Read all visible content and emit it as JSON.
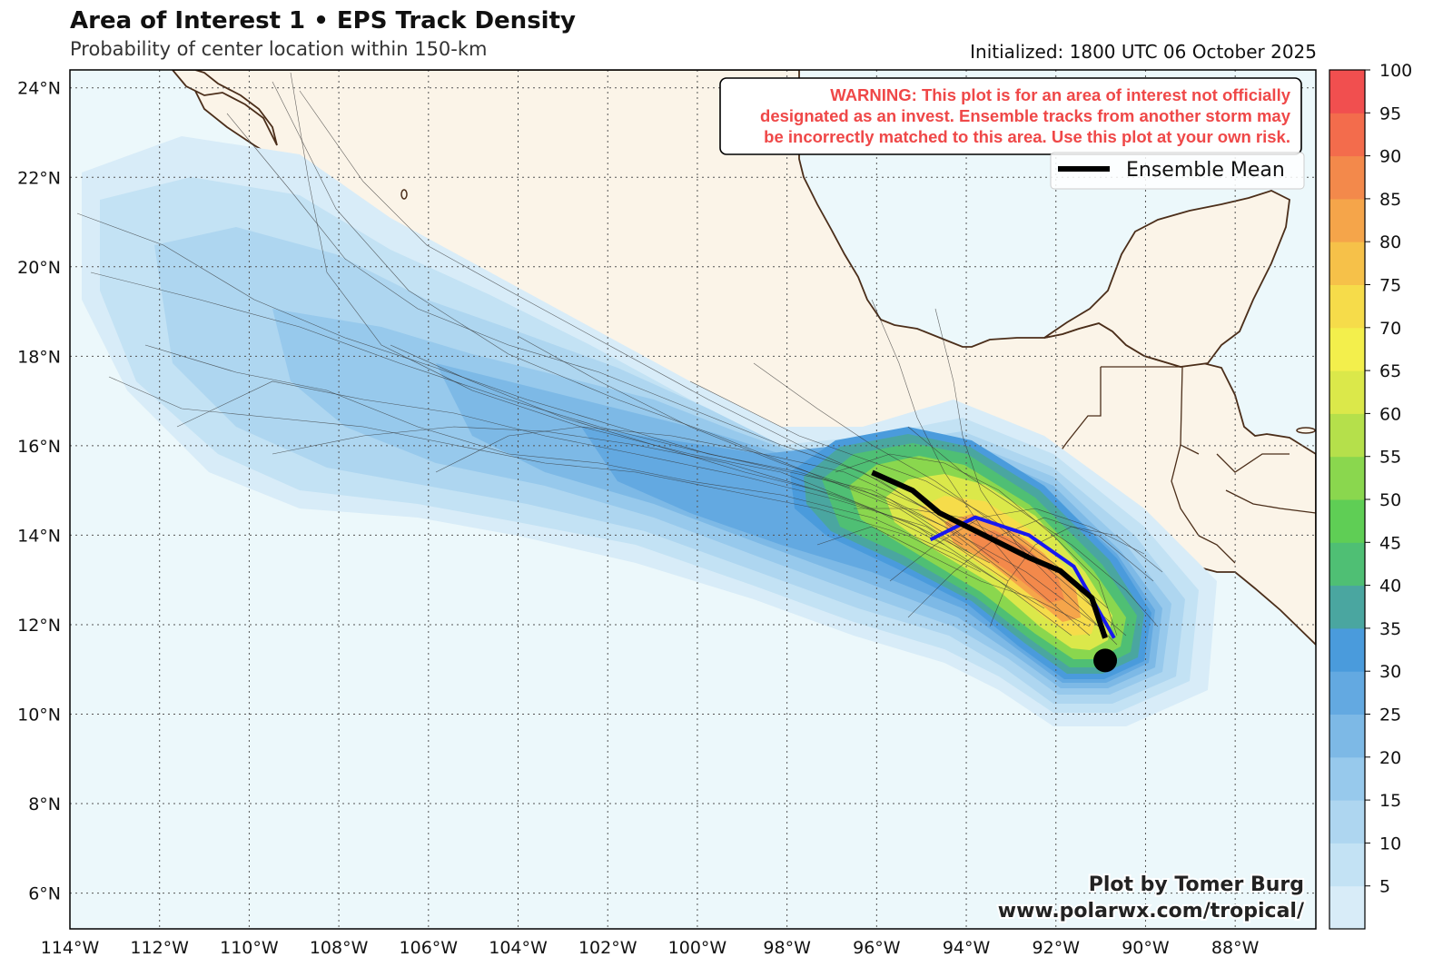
{
  "header": {
    "title": "Area of Interest 1 • EPS Track Density",
    "subtitle": "Probability of center location within 150-km",
    "initialized": "Initialized: 1800 UTC 06 October 2025"
  },
  "map": {
    "lat_labels": [
      "24°N",
      "22°N",
      "20°N",
      "18°N",
      "16°N",
      "14°N",
      "12°N",
      "10°N",
      "8°N",
      "6°N"
    ],
    "lon_labels": [
      "114°W",
      "112°W",
      "110°W",
      "108°W",
      "106°W",
      "104°W",
      "102°W",
      "100°W",
      "98°W",
      "96°W",
      "94°W",
      "92°W",
      "90°W",
      "88°W"
    ],
    "lat_values": [
      24,
      22,
      20,
      18,
      16,
      14,
      12,
      10,
      8,
      6
    ],
    "lon_values": [
      -114,
      -112,
      -110,
      -108,
      -106,
      -104,
      -102,
      -100,
      -98,
      -96,
      -94,
      -92,
      -90,
      -88
    ],
    "extent": {
      "lon_min": -114,
      "lon_max": -86.2,
      "lat_min": 5.2,
      "lat_max": 24.4
    },
    "ocean_color": "#ecf8fb",
    "land_color": "#fbf4e8",
    "coast_color": "#4b2e1a"
  },
  "warning": {
    "line1": "WARNING: This plot is for an area of interest not officially",
    "line2": "designated as an invest. Ensemble tracks from another storm may",
    "line3": "be incorrectly matched to this area. Use this plot at your own risk.",
    "color": "#ef4848"
  },
  "legend": {
    "ensemble_mean": "Ensemble Mean"
  },
  "credits": {
    "line1": "Plot by Tomer Burg",
    "line2": "www.polarwx.com/tropical/"
  },
  "colorbar": {
    "labels": [
      "5",
      "10",
      "15",
      "20",
      "25",
      "30",
      "35",
      "40",
      "45",
      "50",
      "55",
      "60",
      "65",
      "70",
      "75",
      "80",
      "85",
      "90",
      "95",
      "100"
    ],
    "colors": [
      "#d8ecf8",
      "#c3e2f4",
      "#aed6f0",
      "#97c9ec",
      "#7db9e6",
      "#63a9e1",
      "#4a9bdc",
      "#4aa6a0",
      "#4fbf74",
      "#5fce55",
      "#8ad74e",
      "#b5e04b",
      "#dbe84a",
      "#f3ef4c",
      "#f6dc4a",
      "#f6c149",
      "#f5a54a",
      "#f3894b",
      "#f36c4c",
      "#f14f4f"
    ]
  },
  "chart_data": {
    "type": "density-map",
    "ensemble_mean_track": [
      {
        "lon": -96.1,
        "lat": 15.4
      },
      {
        "lon": -95.2,
        "lat": 15.0
      },
      {
        "lon": -94.6,
        "lat": 14.5
      },
      {
        "lon": -93.6,
        "lat": 14.0
      },
      {
        "lon": -92.6,
        "lat": 13.5
      },
      {
        "lon": -91.9,
        "lat": 13.2
      },
      {
        "lon": -91.2,
        "lat": 12.6
      },
      {
        "lon": -90.9,
        "lat": 11.7
      }
    ],
    "operational_track": [
      {
        "lon": -94.8,
        "lat": 13.9
      },
      {
        "lon": -93.8,
        "lat": 14.4
      },
      {
        "lon": -92.6,
        "lat": 14.0
      },
      {
        "lon": -91.6,
        "lat": 13.3
      },
      {
        "lon": -90.7,
        "lat": 11.7
      }
    ],
    "current_position": {
      "lon": -90.9,
      "lat": 11.2
    },
    "density_max_region": {
      "lon": -92.5,
      "lat": 13.5
    }
  }
}
